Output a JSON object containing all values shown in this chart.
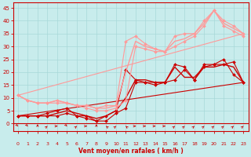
{
  "xlabel": "Vent moyen/en rafales ( km/h )",
  "background_color": "#c8ecec",
  "grid_color": "#a8d8d8",
  "x_ticks": [
    0,
    1,
    2,
    3,
    4,
    5,
    6,
    7,
    8,
    9,
    10,
    11,
    12,
    13,
    14,
    15,
    16,
    17,
    18,
    19,
    20,
    21,
    22,
    23
  ],
  "y_ticks": [
    0,
    5,
    10,
    15,
    20,
    25,
    30,
    35,
    40,
    45
  ],
  "ylim": [
    -3,
    47
  ],
  "xlim": [
    -0.5,
    23.5
  ],
  "lines": [
    {
      "x": [
        0,
        1,
        2,
        3,
        4,
        5,
        6,
        7,
        8,
        9,
        10,
        11,
        12,
        13,
        14,
        15,
        16,
        17,
        18,
        19,
        20,
        21,
        22,
        23
      ],
      "y": [
        3,
        3,
        3,
        3,
        3,
        4,
        3,
        3,
        1,
        3,
        5,
        21,
        17,
        16,
        16,
        16,
        23,
        22,
        17,
        23,
        23,
        25,
        19,
        16
      ],
      "color": "#cc0000",
      "marker": "D",
      "markersize": 2.0,
      "linewidth": 0.8
    },
    {
      "x": [
        0,
        1,
        2,
        3,
        4,
        5,
        6,
        7,
        8,
        9,
        10,
        11,
        12,
        13,
        14,
        15,
        16,
        17,
        18,
        19,
        20,
        21,
        22,
        23
      ],
      "y": [
        3,
        3,
        3,
        4,
        5,
        6,
        3,
        2,
        1,
        1,
        4,
        6,
        16,
        16,
        15,
        16,
        17,
        21,
        17,
        22,
        23,
        23,
        24,
        16
      ],
      "color": "#cc0000",
      "marker": "D",
      "markersize": 2.0,
      "linewidth": 0.8
    },
    {
      "x": [
        0,
        1,
        2,
        3,
        4,
        5,
        6,
        7,
        8,
        9,
        10,
        11,
        12,
        13,
        14,
        15,
        16,
        17,
        18,
        19,
        20,
        21,
        22,
        23
      ],
      "y": [
        3,
        3,
        3,
        3,
        4,
        5,
        4,
        3,
        2,
        3,
        5,
        10,
        17,
        17,
        16,
        16,
        22,
        18,
        18,
        22,
        22,
        23,
        22,
        16
      ],
      "color": "#cc0000",
      "marker": null,
      "markersize": 0,
      "linewidth": 1.0
    },
    {
      "x": [
        0,
        23
      ],
      "y": [
        3,
        16
      ],
      "color": "#cc0000",
      "marker": null,
      "markersize": 0,
      "linewidth": 0.8
    },
    {
      "x": [
        0,
        1,
        2,
        3,
        4,
        5,
        6,
        7,
        8,
        9,
        10,
        11,
        12,
        13,
        14,
        15,
        16,
        17,
        18,
        19,
        20,
        21,
        22,
        23
      ],
      "y": [
        11,
        9,
        8,
        8,
        9,
        8,
        7,
        7,
        6,
        7,
        7,
        32,
        34,
        31,
        29,
        28,
        34,
        35,
        35,
        40,
        44,
        40,
        38,
        35
      ],
      "color": "#ff9999",
      "marker": "D",
      "markersize": 2.0,
      "linewidth": 0.8
    },
    {
      "x": [
        0,
        1,
        2,
        3,
        4,
        5,
        6,
        7,
        8,
        9,
        10,
        11,
        12,
        13,
        14,
        15,
        16,
        17,
        18,
        19,
        20,
        21,
        22,
        23
      ],
      "y": [
        11,
        9,
        8,
        8,
        8,
        8,
        7,
        6,
        5,
        5,
        6,
        9,
        30,
        29,
        28,
        28,
        30,
        32,
        34,
        38,
        44,
        38,
        36,
        34
      ],
      "color": "#ff9999",
      "marker": "D",
      "markersize": 2.0,
      "linewidth": 0.8
    },
    {
      "x": [
        0,
        1,
        2,
        3,
        4,
        5,
        6,
        7,
        8,
        9,
        10,
        11,
        12,
        13,
        14,
        15,
        16,
        17,
        18,
        19,
        20,
        21,
        22,
        23
      ],
      "y": [
        11,
        9,
        8,
        8,
        9,
        8,
        7,
        7,
        6,
        6,
        7,
        20,
        32,
        30,
        29,
        28,
        32,
        33,
        35,
        39,
        44,
        39,
        37,
        35
      ],
      "color": "#ff9999",
      "marker": null,
      "markersize": 0,
      "linewidth": 1.0
    },
    {
      "x": [
        0,
        23
      ],
      "y": [
        11,
        35
      ],
      "color": "#ff9999",
      "marker": null,
      "markersize": 0,
      "linewidth": 0.8
    }
  ],
  "wind_arrow_color": "#cc0000",
  "arrow_angles_deg": [
    225,
    225,
    0,
    315,
    270,
    225,
    315,
    270,
    0,
    45,
    315,
    45,
    270,
    270,
    270,
    270,
    315,
    315,
    315,
    315,
    315,
    315,
    315,
    315
  ]
}
